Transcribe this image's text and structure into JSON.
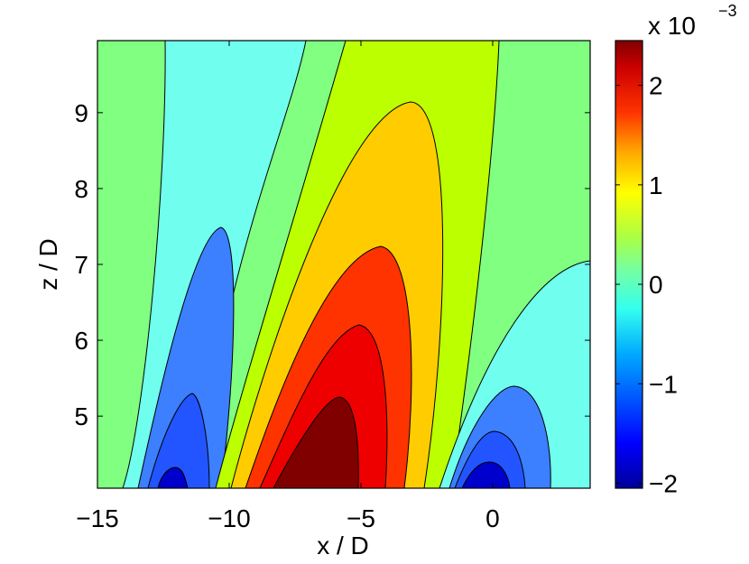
{
  "chart_data": {
    "type": "heatmap",
    "subtype": "filled-contour",
    "colormap": "jet",
    "xlabel": "x / D",
    "ylabel": "z / D",
    "xlim": [
      -15,
      3.7
    ],
    "ylim": [
      4.05,
      9.95
    ],
    "xticks": [
      -15,
      -10,
      -5,
      0
    ],
    "xtick_labels": [
      "−15",
      "−10",
      "−5",
      "0"
    ],
    "yticks": [
      5,
      6,
      7,
      8,
      9
    ],
    "ytick_labels": [
      "5",
      "6",
      "7",
      "8",
      "9"
    ],
    "colorbar": {
      "range": [
        -2.05,
        2.45
      ],
      "multiplier_base": "x 10",
      "multiplier_exponent": "−3",
      "ticks": [
        -2,
        -1,
        0,
        1,
        2
      ],
      "tick_labels": [
        "−2",
        "−1",
        "0",
        "1",
        "2"
      ]
    },
    "contour_levels": [
      {
        "value": 2.2,
        "color": "#800000"
      },
      {
        "value": 1.8,
        "color": "#ee0000"
      },
      {
        "value": 1.35,
        "color": "#ff3300"
      },
      {
        "value": 0.9,
        "color": "#ffcc00"
      },
      {
        "value": 0.45,
        "color": "#bbff00"
      },
      {
        "value": 0.0,
        "color": "#80ff80"
      },
      {
        "value": -0.45,
        "color": "#70ffee"
      },
      {
        "value": -0.9,
        "color": "#3c7fff"
      },
      {
        "value": -1.35,
        "color": "#2255ff"
      },
      {
        "value": -1.8,
        "color": "#0000cc"
      }
    ],
    "grid": false
  }
}
